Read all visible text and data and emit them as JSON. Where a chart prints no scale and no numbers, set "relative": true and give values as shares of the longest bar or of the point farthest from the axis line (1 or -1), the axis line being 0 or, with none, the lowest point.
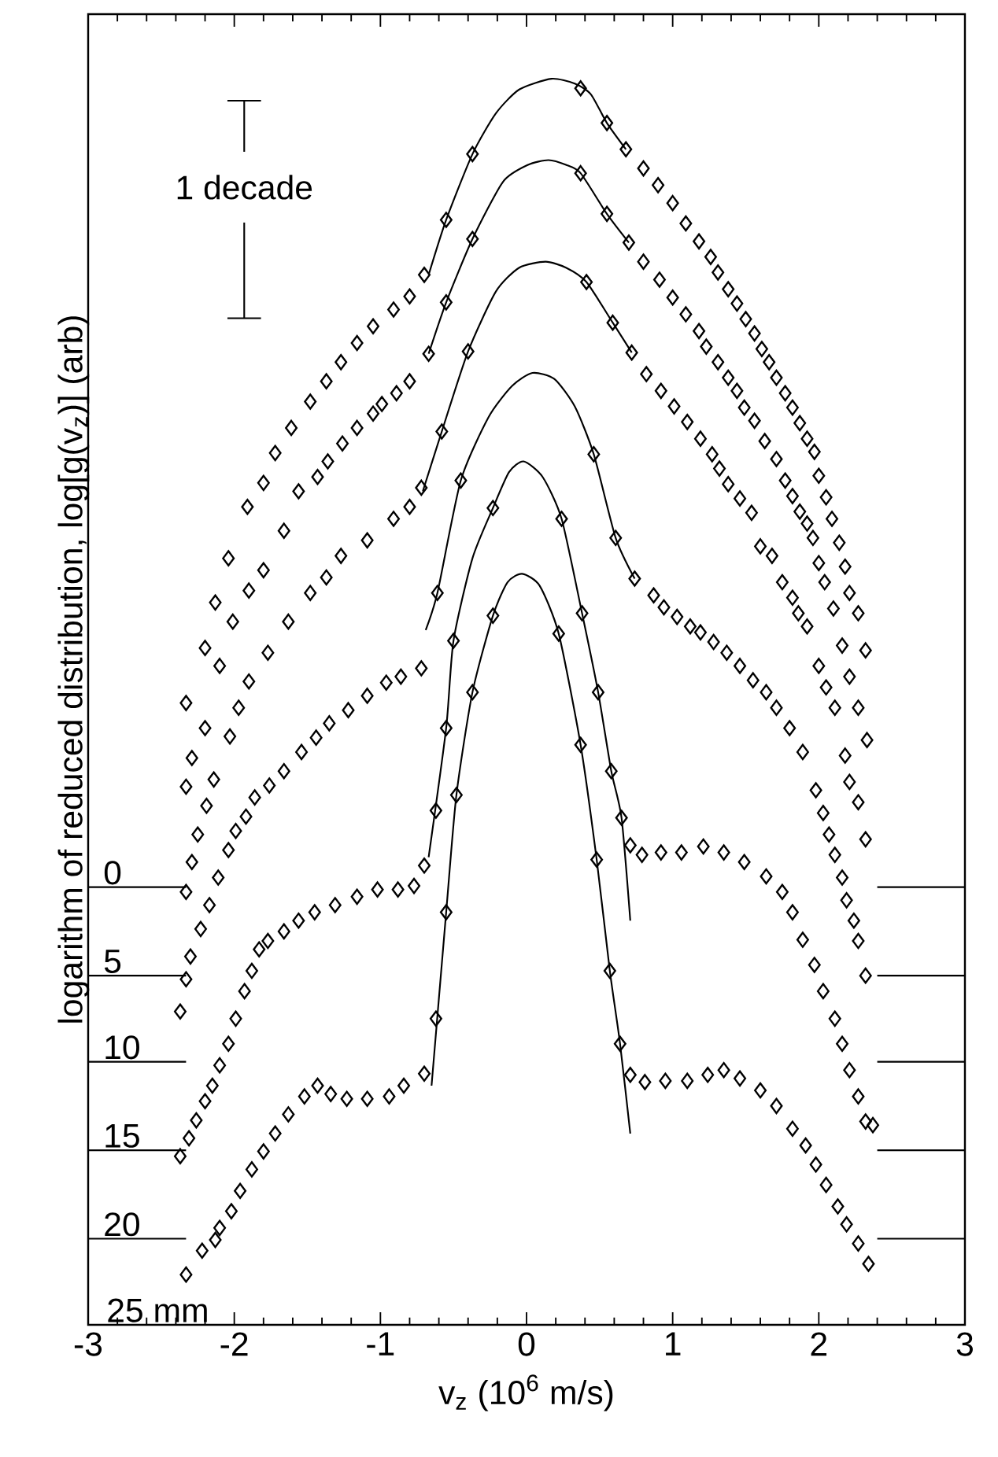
{
  "chart_data": {
    "type": "scatter",
    "xlabel": "v$_{z}$ (10$^{6}$ m/s)",
    "ylabel": "logarithm of reduced distribution, log[g(v$_{z}$)] (arb)",
    "annotations": [
      "1 decade",
      "25 mm",
      {
        "text": "0",
        "y": 0.324
      },
      {
        "text": "5",
        "y": 0.25
      },
      {
        "text": "10",
        "y": 0.178
      },
      {
        "text": "15",
        "y": 0.104
      },
      {
        "text": "20",
        "y": 0.03
      }
    ],
    "xlim": [
      -3,
      3
    ],
    "xticks": [
      -3,
      -2,
      -1,
      0,
      1,
      2,
      3
    ],
    "relative": true,
    "line_style": "solid",
    "ref_lines": [
      {
        "axis": "y",
        "value": 0.324
      },
      {
        "axis": "y",
        "value": 0.25
      },
      {
        "axis": "y",
        "value": 0.178
      },
      {
        "axis": "y",
        "value": 0.104
      },
      {
        "axis": "y",
        "value": 0.03
      }
    ],
    "series": [
      {
        "marker": "diamond",
        "color": "#000000",
        "x": [
          -2.33,
          -2.2,
          -2.13,
          -2.04,
          -1.91,
          -1.8,
          -1.72,
          -1.61,
          -1.48,
          -1.37,
          -1.27,
          -1.16,
          -1.05,
          -0.91,
          -0.8,
          -0.7,
          -0.55,
          -0.37,
          0.37,
          0.55,
          0.68,
          0.8,
          0.9,
          1.0,
          1.09,
          1.18,
          1.26,
          1.31,
          1.38,
          1.44,
          1.5,
          1.56,
          1.61,
          1.66,
          1.71,
          1.77,
          1.82,
          1.87,
          1.92,
          1.97,
          2.0,
          2.05,
          2.09,
          2.14,
          2.18,
          2.21,
          2.27,
          2.32
        ],
        "values": [
          0.478,
          0.524,
          0.562,
          0.599,
          0.642,
          0.662,
          0.687,
          0.708,
          0.73,
          0.747,
          0.763,
          0.779,
          0.793,
          0.807,
          0.818,
          0.836,
          0.882,
          0.937,
          0.992,
          0.963,
          0.941,
          0.925,
          0.911,
          0.896,
          0.879,
          0.864,
          0.851,
          0.838,
          0.824,
          0.812,
          0.799,
          0.787,
          0.774,
          0.763,
          0.75,
          0.737,
          0.725,
          0.712,
          0.699,
          0.688,
          0.668,
          0.65,
          0.632,
          0.612,
          0.592,
          0.57,
          0.553,
          0.522
        ]
      },
      {
        "type": "line",
        "color": "#000000",
        "x": [
          -0.67,
          -0.55,
          -0.37,
          -0.21,
          -0.05,
          0.17,
          0.33,
          0.44,
          0.55,
          0.68
        ],
        "values": [
          0.836,
          0.882,
          0.937,
          0.971,
          0.991,
          1.0,
          0.996,
          0.987,
          0.963,
          0.941
        ]
      },
      {
        "marker": "diamond",
        "color": "#000000",
        "x": [
          -2.33,
          -2.29,
          -2.2,
          -2.1,
          -2.01,
          -1.9,
          -1.8,
          -1.66,
          -1.56,
          -1.43,
          -1.36,
          -1.26,
          -1.16,
          -1.05,
          -0.99,
          -0.89,
          -0.8,
          -0.67,
          -0.55,
          -0.37,
          0.37,
          0.55,
          0.7,
          0.8,
          0.91,
          1.0,
          1.09,
          1.18,
          1.23,
          1.31,
          1.38,
          1.44,
          1.49,
          1.56,
          1.63,
          1.71,
          1.77,
          1.82,
          1.87,
          1.92,
          1.96,
          2.0,
          2.04,
          2.1,
          2.16,
          2.21,
          2.27,
          2.33
        ],
        "values": [
          0.408,
          0.432,
          0.457,
          0.509,
          0.546,
          0.572,
          0.589,
          0.622,
          0.655,
          0.667,
          0.68,
          0.695,
          0.708,
          0.72,
          0.728,
          0.737,
          0.747,
          0.77,
          0.813,
          0.866,
          0.921,
          0.887,
          0.863,
          0.847,
          0.832,
          0.817,
          0.803,
          0.789,
          0.776,
          0.763,
          0.75,
          0.739,
          0.725,
          0.714,
          0.697,
          0.682,
          0.664,
          0.651,
          0.638,
          0.628,
          0.616,
          0.595,
          0.579,
          0.557,
          0.526,
          0.5,
          0.474,
          0.447
        ]
      },
      {
        "type": "line",
        "color": "#000000",
        "x": [
          -0.67,
          -0.55,
          -0.37,
          -0.16,
          0.01,
          0.15,
          0.27,
          0.37,
          0.55,
          0.7
        ],
        "values": [
          0.77,
          0.813,
          0.866,
          0.914,
          0.928,
          0.932,
          0.928,
          0.921,
          0.887,
          0.863
        ]
      },
      {
        "marker": "diamond",
        "color": "#000000",
        "x": [
          -2.33,
          -2.29,
          -2.25,
          -2.19,
          -2.14,
          -2.03,
          -1.97,
          -1.9,
          -1.77,
          -1.63,
          -1.48,
          -1.37,
          -1.27,
          -1.09,
          -0.91,
          -0.8,
          -0.72,
          -0.58,
          -0.4,
          0.41,
          0.59,
          0.72,
          0.82,
          0.92,
          1.01,
          1.1,
          1.19,
          1.27,
          1.32,
          1.38,
          1.46,
          1.54,
          1.6,
          1.68,
          1.75,
          1.82,
          1.86,
          1.92,
          2.0,
          2.05,
          2.11,
          2.18,
          2.21,
          2.27,
          2.32
        ],
        "values": [
          0.32,
          0.345,
          0.368,
          0.392,
          0.414,
          0.45,
          0.474,
          0.496,
          0.52,
          0.546,
          0.57,
          0.583,
          0.601,
          0.614,
          0.632,
          0.642,
          0.658,
          0.705,
          0.772,
          0.83,
          0.796,
          0.771,
          0.753,
          0.739,
          0.726,
          0.713,
          0.699,
          0.686,
          0.674,
          0.661,
          0.649,
          0.637,
          0.609,
          0.601,
          0.579,
          0.566,
          0.553,
          0.542,
          0.509,
          0.491,
          0.474,
          0.434,
          0.412,
          0.395,
          0.364
        ]
      },
      {
        "type": "line",
        "color": "#000000",
        "x": [
          -0.71,
          -0.58,
          -0.4,
          -0.21,
          -0.05,
          0.13,
          0.27,
          0.41,
          0.59,
          0.72
        ],
        "values": [
          0.655,
          0.705,
          0.772,
          0.822,
          0.842,
          0.847,
          0.842,
          0.83,
          0.796,
          0.771
        ]
      },
      {
        "marker": "diamond",
        "color": "#000000",
        "x": [
          -2.37,
          -2.33,
          -2.3,
          -2.23,
          -2.17,
          -2.11,
          -2.04,
          -1.99,
          -1.92,
          -1.86,
          -1.76,
          -1.66,
          -1.54,
          -1.44,
          -1.35,
          -1.22,
          -1.09,
          -0.96,
          -0.86,
          -0.72,
          -0.61,
          -0.45,
          0.46,
          0.61,
          0.74,
          0.87,
          0.94,
          1.03,
          1.12,
          1.19,
          1.28,
          1.37,
          1.46,
          1.55,
          1.64,
          1.71,
          1.8,
          1.89,
          1.98,
          2.03,
          2.07,
          2.11,
          2.16,
          2.19,
          2.24,
          2.27,
          2.32
        ],
        "values": [
          0.22,
          0.247,
          0.266,
          0.289,
          0.309,
          0.332,
          0.355,
          0.371,
          0.383,
          0.399,
          0.409,
          0.421,
          0.437,
          0.449,
          0.461,
          0.472,
          0.484,
          0.495,
          0.5,
          0.507,
          0.57,
          0.664,
          0.686,
          0.616,
          0.582,
          0.568,
          0.558,
          0.55,
          0.542,
          0.537,
          0.529,
          0.52,
          0.509,
          0.497,
          0.487,
          0.474,
          0.457,
          0.437,
          0.405,
          0.386,
          0.368,
          0.351,
          0.332,
          0.313,
          0.296,
          0.279,
          0.25
        ]
      },
      {
        "type": "line",
        "color": "#000000",
        "x": [
          -0.69,
          -0.61,
          -0.45,
          -0.26,
          -0.1,
          0.04,
          0.19,
          0.33,
          0.46,
          0.61,
          0.74
        ],
        "values": [
          0.539,
          0.57,
          0.664,
          0.717,
          0.743,
          0.754,
          0.749,
          0.726,
          0.686,
          0.616,
          0.582
        ]
      },
      {
        "marker": "diamond",
        "color": "#000000",
        "x": [
          -2.37,
          -2.31,
          -2.26,
          -2.2,
          -2.15,
          -2.1,
          -2.04,
          -1.99,
          -1.93,
          -1.88,
          -1.83,
          -1.77,
          -1.66,
          -1.56,
          -1.45,
          -1.31,
          -1.16,
          -1.02,
          -0.88,
          -0.77,
          -0.7,
          -0.62,
          -0.55,
          -0.5,
          -0.23,
          0.24,
          0.38,
          0.49,
          0.58,
          0.65,
          0.71,
          0.79,
          0.92,
          1.06,
          1.21,
          1.35,
          1.49,
          1.64,
          1.75,
          1.82,
          1.89,
          1.97,
          2.03,
          2.11,
          2.16,
          2.21,
          2.27,
          2.32,
          2.37
        ],
        "values": [
          0.099,
          0.114,
          0.129,
          0.145,
          0.158,
          0.175,
          0.193,
          0.214,
          0.237,
          0.254,
          0.272,
          0.279,
          0.287,
          0.296,
          0.303,
          0.309,
          0.316,
          0.322,
          0.322,
          0.325,
          0.342,
          0.388,
          0.457,
          0.53,
          0.641,
          0.632,
          0.553,
          0.487,
          0.421,
          0.382,
          0.359,
          0.351,
          0.353,
          0.353,
          0.358,
          0.353,
          0.345,
          0.333,
          0.32,
          0.303,
          0.28,
          0.259,
          0.237,
          0.214,
          0.193,
          0.171,
          0.149,
          0.128,
          0.125
        ]
      },
      {
        "type": "line",
        "color": "#000000",
        "x": [
          -0.67,
          -0.55,
          -0.5,
          -0.37,
          -0.23,
          -0.12,
          -0.02,
          0.11,
          0.24,
          0.38,
          0.49,
          0.58,
          0.65,
          0.71
        ],
        "values": [
          0.349,
          0.457,
          0.53,
          0.599,
          0.641,
          0.671,
          0.68,
          0.667,
          0.632,
          0.553,
          0.487,
          0.421,
          0.382,
          0.296
        ]
      },
      {
        "marker": "diamond",
        "color": "#000000",
        "x": [
          -2.33,
          -2.22,
          -2.13,
          -2.1,
          -2.02,
          -1.96,
          -1.88,
          -1.8,
          -1.72,
          -1.63,
          -1.52,
          -1.43,
          -1.34,
          -1.23,
          -1.09,
          -0.94,
          -0.84,
          -0.7,
          -0.62,
          -0.55,
          -0.48,
          -0.37,
          -0.23,
          0.22,
          0.37,
          0.48,
          0.57,
          0.64,
          0.71,
          0.81,
          0.95,
          1.1,
          1.24,
          1.35,
          1.46,
          1.6,
          1.71,
          1.82,
          1.91,
          1.98,
          2.05,
          2.13,
          2.19,
          2.27,
          2.34
        ],
        "values": [
          0.0,
          0.02,
          0.029,
          0.039,
          0.053,
          0.07,
          0.088,
          0.103,
          0.118,
          0.134,
          0.149,
          0.158,
          0.151,
          0.147,
          0.147,
          0.149,
          0.158,
          0.168,
          0.214,
          0.303,
          0.401,
          0.487,
          0.551,
          0.536,
          0.443,
          0.347,
          0.254,
          0.193,
          0.167,
          0.161,
          0.162,
          0.162,
          0.167,
          0.171,
          0.164,
          0.154,
          0.141,
          0.122,
          0.108,
          0.092,
          0.075,
          0.057,
          0.042,
          0.026,
          0.009
        ]
      },
      {
        "type": "line",
        "color": "#000000",
        "x": [
          -0.65,
          -0.55,
          -0.48,
          -0.37,
          -0.23,
          -0.13,
          -0.03,
          0.09,
          0.22,
          0.37,
          0.48,
          0.57,
          0.64,
          0.71
        ],
        "values": [
          0.158,
          0.303,
          0.401,
          0.487,
          0.551,
          0.579,
          0.586,
          0.576,
          0.536,
          0.443,
          0.347,
          0.254,
          0.193,
          0.118
        ]
      }
    ]
  }
}
